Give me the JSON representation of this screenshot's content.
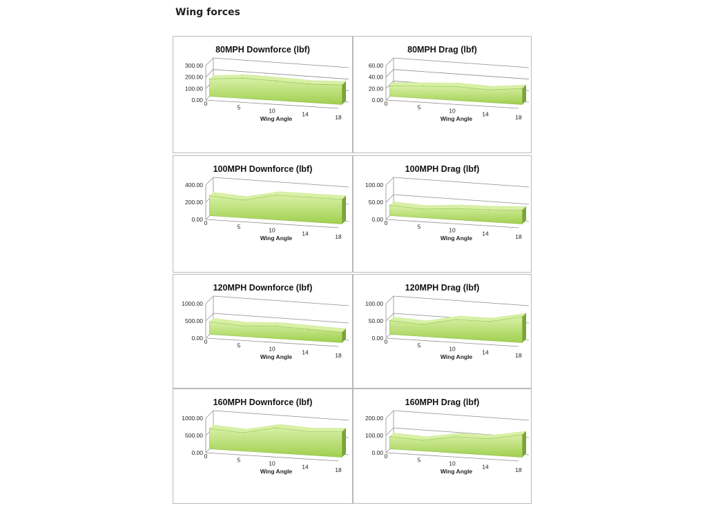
{
  "page": {
    "title": "Wing forces",
    "colors": {
      "area_fill_top": "#d8f0a6",
      "area_fill_bottom": "#9fcf4e",
      "area_side": "#7aa33a",
      "gridline": "#8c8c8c"
    }
  },
  "chart_data": [
    {
      "type": "area",
      "title": "80MPH Downforce (lbf)",
      "xlabel": "Wing Angle",
      "ylabel": "",
      "categories": [
        "0",
        "5",
        "10",
        "14",
        "18"
      ],
      "values": [
        150,
        175,
        170,
        160,
        170
      ],
      "yticks": [
        "300.00",
        "200.00",
        "100.00",
        "0.00"
      ],
      "ylim": [
        0,
        300
      ],
      "grid": true,
      "legend": "none"
    },
    {
      "type": "area",
      "title": "80MPH Drag (lbf)",
      "xlabel": "Wing Angle",
      "ylabel": "",
      "categories": [
        "0",
        "5",
        "10",
        "14",
        "18"
      ],
      "values": [
        18,
        21,
        24,
        22,
        28
      ],
      "yticks": [
        "60.00",
        "40.00",
        "20.00",
        "0.00"
      ],
      "ylim": [
        0,
        60
      ],
      "grid": true,
      "legend": "none"
    },
    {
      "type": "area",
      "title": "100MPH Downforce (lbf)",
      "xlabel": "Wing Angle",
      "ylabel": "",
      "categories": [
        "0",
        "5",
        "10",
        "14",
        "18"
      ],
      "values": [
        230,
        205,
        285,
        285,
        285
      ],
      "yticks": [
        "400.00",
        "200.00",
        "0.00"
      ],
      "ylim": [
        0,
        400
      ],
      "grid": true,
      "legend": "none"
    },
    {
      "type": "area",
      "title": "100MPH Drag (lbf)",
      "xlabel": "Wing Angle",
      "ylabel": "",
      "categories": [
        "0",
        "5",
        "10",
        "14",
        "18"
      ],
      "values": [
        30,
        25,
        33,
        35,
        40
      ],
      "yticks": [
        "100.00",
        "50.00",
        "0.00"
      ],
      "ylim": [
        0,
        100
      ],
      "grid": true,
      "legend": "none"
    },
    {
      "type": "area",
      "title": "120MPH Downforce (lbf)",
      "xlabel": "Wing Angle",
      "ylabel": "",
      "categories": [
        "0",
        "5",
        "10",
        "14",
        "18"
      ],
      "values": [
        360,
        310,
        360,
        330,
        300
      ],
      "yticks": [
        "1000.00",
        "500.00",
        "0.00"
      ],
      "ylim": [
        0,
        1000
      ],
      "grid": true,
      "legend": "none"
    },
    {
      "type": "area",
      "title": "120MPH Drag (lbf)",
      "xlabel": "Wing Angle",
      "ylabel": "",
      "categories": [
        "0",
        "5",
        "10",
        "14",
        "18"
      ],
      "values": [
        40,
        35,
        55,
        55,
        75
      ],
      "yticks": [
        "100.00",
        "50.00",
        "0.00"
      ],
      "ylim": [
        0,
        100
      ],
      "grid": true,
      "legend": "none"
    },
    {
      "type": "area",
      "title": "160MPH Downforce (lbf)",
      "xlabel": "Wing Angle",
      "ylabel": "",
      "categories": [
        "0",
        "5",
        "10",
        "14",
        "18"
      ],
      "values": [
        590,
        530,
        730,
        680,
        740
      ],
      "yticks": [
        "1000.00",
        "500.00",
        "0.00"
      ],
      "ylim": [
        0,
        1000
      ],
      "grid": true,
      "legend": "none"
    },
    {
      "type": "area",
      "title": "160MPH Drag (lbf)",
      "xlabel": "Wing Angle",
      "ylabel": "",
      "categories": [
        "0",
        "5",
        "10",
        "14",
        "18"
      ],
      "values": [
        72,
        62,
        95,
        95,
        130
      ],
      "yticks": [
        "200.00",
        "100.00",
        "0.00"
      ],
      "ylim": [
        0,
        200
      ],
      "grid": true,
      "legend": "none"
    }
  ]
}
